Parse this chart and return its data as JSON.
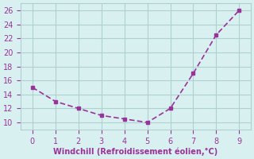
{
  "x": [
    0,
    1,
    2,
    3,
    4,
    5,
    6,
    7,
    8,
    9
  ],
  "y": [
    15.0,
    13.0,
    12.0,
    11.0,
    10.5,
    10.0,
    12.0,
    17.0,
    22.5,
    26.0
  ],
  "line_color": "#993399",
  "marker_color": "#993399",
  "bg_color": "#d8f0f0",
  "grid_color": "#b0d0d0",
  "xlabel": "Windchill (Refroidissement éolien,°C)",
  "xlabel_color": "#993399",
  "tick_color": "#993399",
  "xlim": [
    -0.5,
    9.5
  ],
  "ylim": [
    9,
    27
  ],
  "yticks": [
    10,
    12,
    14,
    16,
    18,
    20,
    22,
    24,
    26
  ],
  "xticks": [
    0,
    1,
    2,
    3,
    4,
    5,
    6,
    7,
    8,
    9
  ],
  "figsize": [
    3.2,
    2.0
  ],
  "dpi": 100
}
